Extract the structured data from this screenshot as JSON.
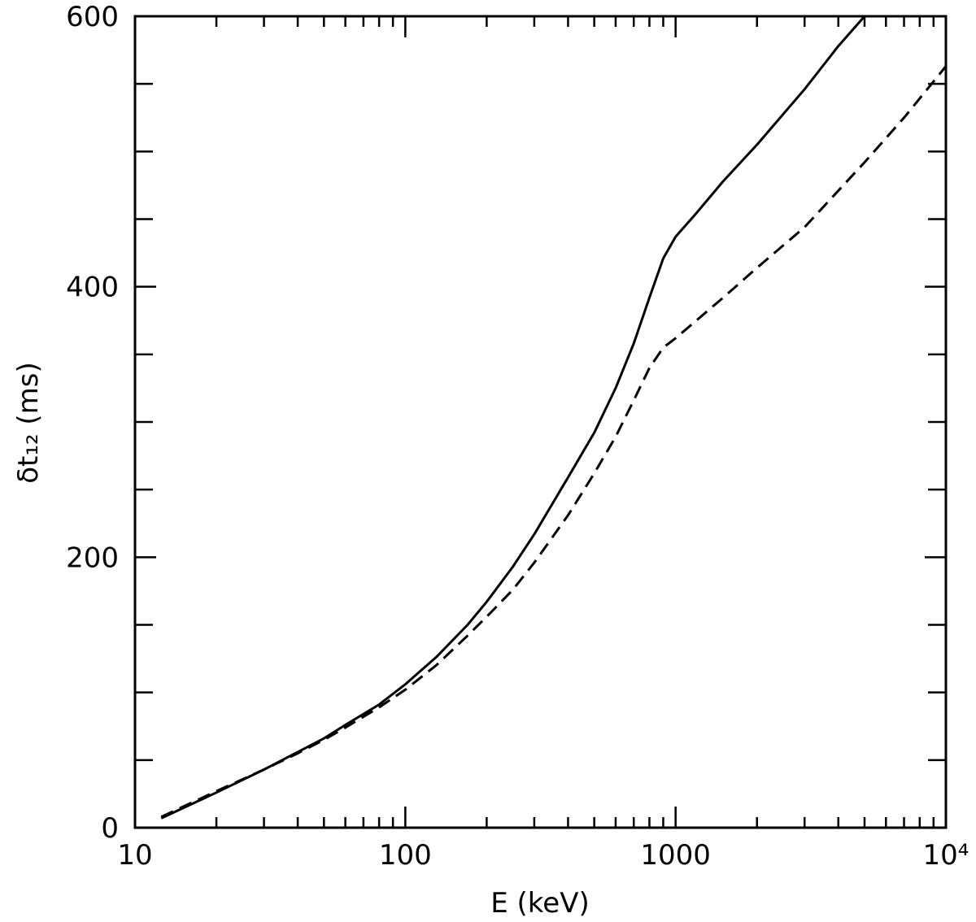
{
  "chart_data": {
    "type": "line",
    "title": "",
    "xlabel": "E (keV)",
    "ylabel": "δt₁₂ (ms)",
    "xscale": "log",
    "xlim": [
      10,
      10000
    ],
    "ylim": [
      0,
      600
    ],
    "grid": false,
    "legend": "none",
    "x_tick_labels": [
      "10",
      "100",
      "1000",
      "10⁴"
    ],
    "x_tick_values": [
      10,
      100,
      1000,
      10000
    ],
    "y_tick_labels": [
      "0",
      "200",
      "400",
      "600"
    ],
    "y_tick_values": [
      0,
      200,
      400,
      600
    ],
    "y_minor_step": 50,
    "series": [
      {
        "style": "solid",
        "x": [
          12.5,
          20,
          30,
          40,
          50,
          60,
          80,
          100,
          130,
          170,
          200,
          250,
          300,
          400,
          500,
          600,
          700,
          800,
          900,
          1000,
          1200,
          1500,
          2000,
          3000,
          4000,
          5000,
          5300
        ],
        "y": [
          7,
          26,
          43,
          56,
          66,
          76,
          91,
          106,
          126,
          150,
          167,
          193,
          217,
          259,
          292,
          325,
          358,
          392,
          421,
          437,
          455,
          478,
          505,
          546,
          578,
          600,
          606
        ]
      },
      {
        "style": "dashed",
        "x": [
          12.5,
          20,
          30,
          40,
          50,
          60,
          80,
          100,
          130,
          170,
          200,
          250,
          300,
          400,
          500,
          600,
          700,
          800,
          900,
          1000,
          1500,
          2000,
          3000,
          5000,
          7000,
          10000
        ],
        "y": [
          8,
          27,
          43,
          55,
          65,
          74,
          89,
          102,
          120,
          142,
          156,
          176,
          196,
          231,
          262,
          289,
          316,
          340,
          355,
          362,
          392,
          414,
          444,
          492,
          525,
          563
        ]
      }
    ]
  }
}
